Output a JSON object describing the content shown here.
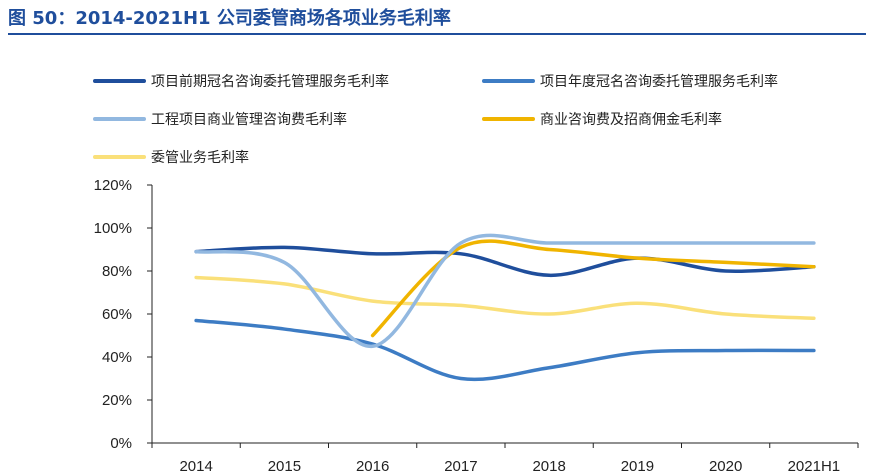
{
  "figure": {
    "title": "图 50：2014-2021H1 公司委管商场各项业务毛利率"
  },
  "chart_data": {
    "type": "line",
    "x": [
      "2014",
      "2015",
      "2016",
      "2017",
      "2018",
      "2019",
      "2020",
      "2021H1"
    ],
    "ylim": [
      0,
      120
    ],
    "yticks": [
      "0%",
      "20%",
      "40%",
      "60%",
      "80%",
      "100%",
      "120%"
    ],
    "grid": false,
    "legend_position": "top",
    "series": [
      {
        "name": "项目前期冠名咨询委托管理服务毛利率",
        "color": "#1f4e9c",
        "values": [
          89,
          91,
          88,
          88,
          78,
          86,
          80,
          82
        ]
      },
      {
        "name": "项目年度冠名咨询委托管理服务毛利率",
        "color": "#3d7cc4",
        "values": [
          57,
          53,
          46,
          30,
          35,
          42,
          43,
          43
        ]
      },
      {
        "name": "工程项目商业管理咨询费毛利率",
        "color": "#92b8e0",
        "values": [
          89,
          84,
          45,
          93,
          93,
          93,
          93,
          93
        ]
      },
      {
        "name": "商业咨询费及招商佣金毛利率",
        "color": "#f0b400",
        "values": [
          null,
          null,
          50,
          91,
          90,
          86,
          84,
          82
        ]
      },
      {
        "name": "委管业务毛利率",
        "color": "#fae07a",
        "values": [
          77,
          74,
          66,
          64,
          60,
          65,
          60,
          58
        ]
      }
    ]
  }
}
